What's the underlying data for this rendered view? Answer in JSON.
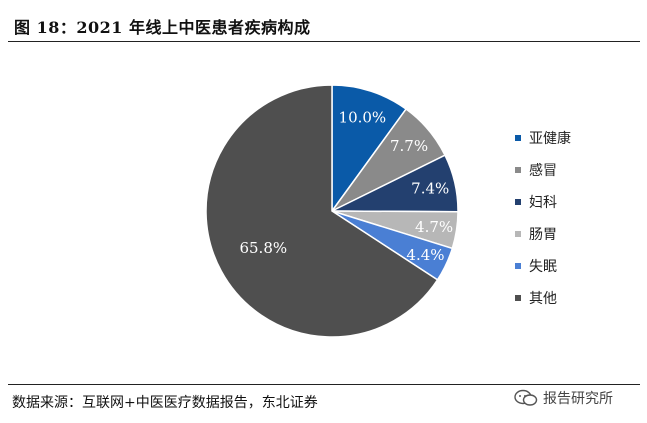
{
  "title": "图 18：2021 年线上中医患者疾病构成",
  "source": "数据来源：互联网+中医医疗数据报告，东北证券",
  "watermark": "报告研究所",
  "chart_data": {
    "type": "pie",
    "title": "",
    "start_angle_deg": 0,
    "direction": "clockwise",
    "legend_position": "right",
    "slices": [
      {
        "label": "亚健康",
        "value": 10.0,
        "display": "10.0%",
        "color": "#0a5aa8",
        "label_color": "#ffffff"
      },
      {
        "label": "感冒",
        "value": 7.7,
        "display": "7.7%",
        "color": "#8a8a8a",
        "label_color": "#ffffff"
      },
      {
        "label": "妇科",
        "value": 7.4,
        "display": "7.4%",
        "color": "#23406f",
        "label_color": "#ffffff"
      },
      {
        "label": "肠胃",
        "value": 4.7,
        "display": "4.7%",
        "color": "#b7b7b7",
        "label_color": "#ffffff"
      },
      {
        "label": "失眠",
        "value": 4.4,
        "display": "4.4%",
        "color": "#4a7fd4",
        "label_color": "#ffffff"
      },
      {
        "label": "其他",
        "value": 65.8,
        "display": "65.8%",
        "color": "#4f4f4f",
        "label_color": "#ffffff"
      }
    ]
  }
}
